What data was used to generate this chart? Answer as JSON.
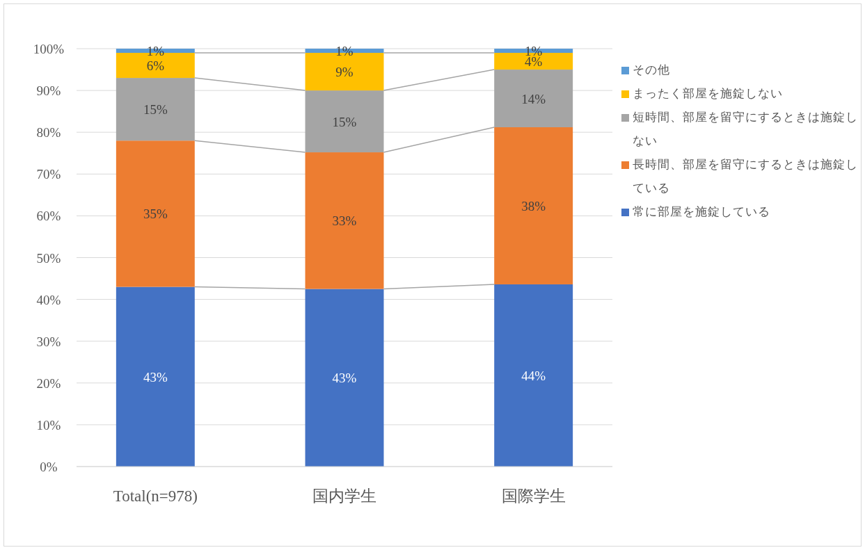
{
  "chart_data": {
    "type": "bar",
    "stacked": true,
    "categories": [
      "Total(n=978)",
      "国内学生",
      "国際学生"
    ],
    "series": [
      {
        "name": "常に部屋を施錠している",
        "color": "#4472c4",
        "values": [
          43,
          42.5,
          43.6
        ],
        "value_labels": [
          "43%",
          "43%",
          "44%"
        ]
      },
      {
        "name": "長時間、部屋を留守にするときは施錠している",
        "color": "#ed7d31",
        "values": [
          35,
          32.7,
          37.6
        ],
        "value_labels": [
          "35%",
          "33%",
          "38%"
        ]
      },
      {
        "name": "短時間、部屋を留守にするときは施錠しない",
        "color": "#a5a5a5",
        "values": [
          15,
          14.8,
          13.8
        ],
        "value_labels": [
          "15%",
          "15%",
          "14%"
        ]
      },
      {
        "name": "まったく部屋を施錠しない",
        "color": "#ffc000",
        "values": [
          6,
          9,
          4
        ],
        "value_labels": [
          "6%",
          "9%",
          "4%"
        ]
      },
      {
        "name": "その他",
        "color": "#5b9bd5",
        "values": [
          1,
          1,
          1
        ],
        "value_labels": [
          "1%",
          "1%",
          "1%"
        ]
      }
    ],
    "ylim": [
      0,
      100
    ],
    "yticks": [
      {
        "value": 0,
        "label": "0%"
      },
      {
        "value": 10,
        "label": "10%"
      },
      {
        "value": 20,
        "label": "20%"
      },
      {
        "value": 30,
        "label": "30%"
      },
      {
        "value": 40,
        "label": "40%"
      },
      {
        "value": 50,
        "label": "50%"
      },
      {
        "value": 60,
        "label": "60%"
      },
      {
        "value": 70,
        "label": "70%"
      },
      {
        "value": 80,
        "label": "80%"
      },
      {
        "value": 90,
        "label": "90%"
      },
      {
        "value": 100,
        "label": "100%"
      }
    ],
    "grid": "y",
    "legend": "right"
  }
}
